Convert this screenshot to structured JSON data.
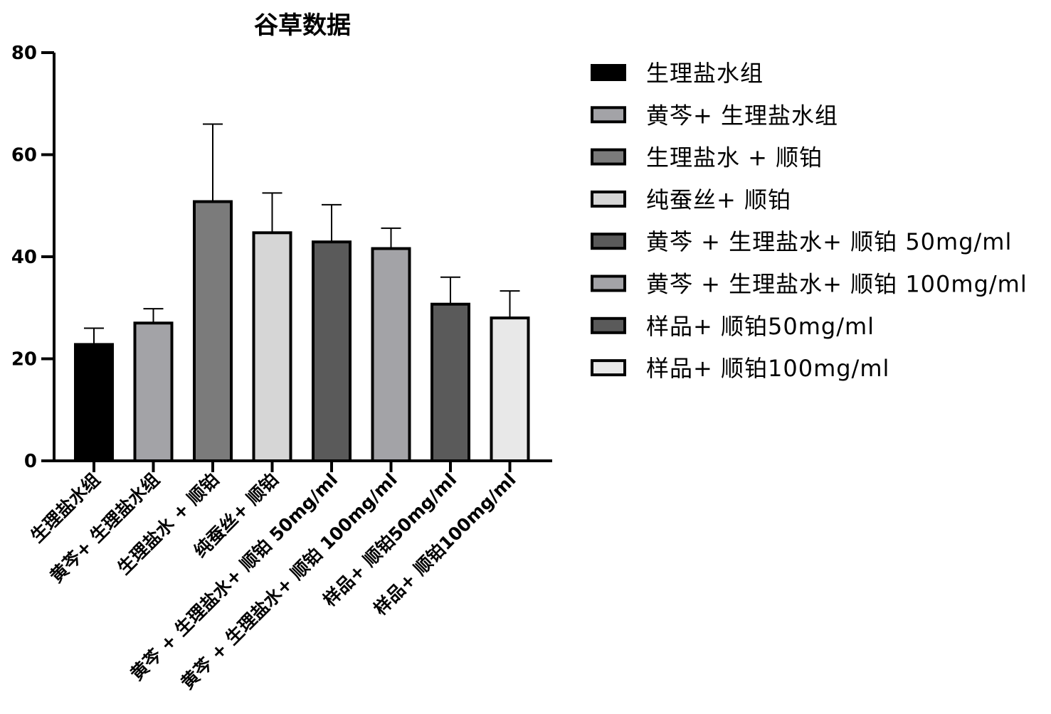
{
  "chart_data": {
    "type": "bar",
    "title": "谷草数据",
    "xlabel": "",
    "ylabel": "",
    "ylim": [
      0,
      80
    ],
    "yticks": [
      "0",
      "20",
      "40",
      "60",
      "80"
    ],
    "grid": false,
    "legend_position": "right",
    "categories": [
      "生理盐水组",
      "黄芩+ 生理盐水组",
      "生理盐水 + 顺铂",
      "纯蚕丝+ 顺铂",
      "黄芩 + 生理盐水+ 顺铂 50mg/ml",
      "黄芩 + 生理盐水+ 顺铂 100mg/ml",
      "样品+ 顺铂50mg/ml",
      "样品+ 顺铂100mg/ml"
    ],
    "legend": [
      "生理盐水组",
      "黄芩+ 生理盐水组",
      "生理盐水 + 顺铂",
      "纯蚕丝+ 顺铂",
      "黄芩 + 生理盐水+ 顺铂 50mg/ml",
      "黄芩 + 生理盐水+ 顺铂 100mg/ml",
      "样品+ 顺铂50mg/ml",
      "样品+ 顺铂100mg/ml"
    ],
    "values": [
      22.8,
      27.0,
      50.8,
      44.7,
      42.9,
      41.6,
      30.7,
      28.0
    ],
    "error_upper": [
      26.0,
      29.8,
      66.0,
      52.5,
      50.2,
      45.6,
      36.0,
      33.3
    ],
    "colors": [
      "#000000",
      "#a3a3a7",
      "#7b7b7b",
      "#d6d6d6",
      "#5a5a5a",
      "#a3a3a7",
      "#5a5a5a",
      "#e8e8e8"
    ]
  }
}
